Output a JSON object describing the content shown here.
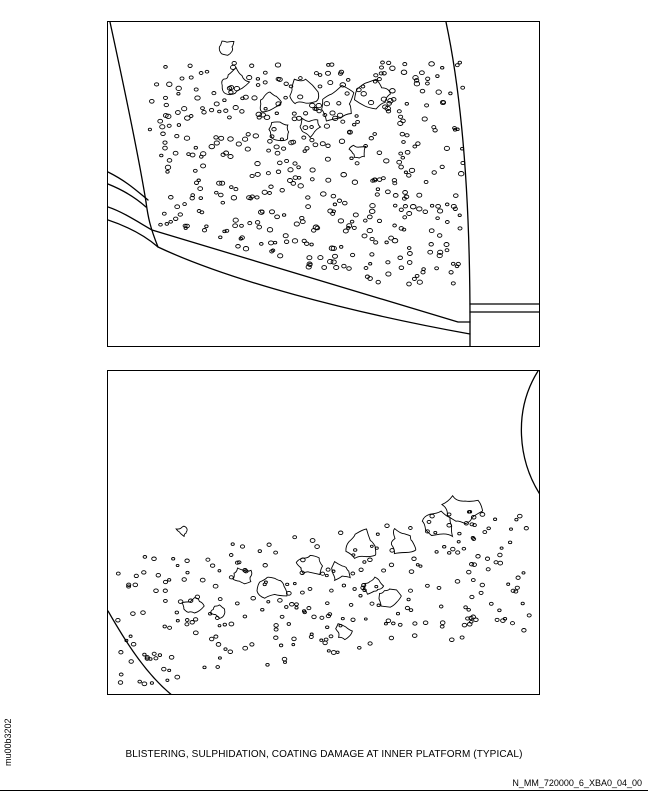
{
  "figure": {
    "caption": "BLISTERING, SULPHIDATION, COATING DAMAGE AT INNER PLATFORM (TYPICAL)",
    "side_reference": "mu00b3202",
    "figure_reference": "N_MM_720000_6_XBA0_04_00"
  },
  "colors": {
    "line": "#000000",
    "background": "#ffffff"
  },
  "panels": [
    {
      "id": "top",
      "subject": "inner platform with blister and sulphidation damage, view 1"
    },
    {
      "id": "bottom",
      "subject": "inner platform with blister and sulphidation damage, view 2"
    }
  ]
}
